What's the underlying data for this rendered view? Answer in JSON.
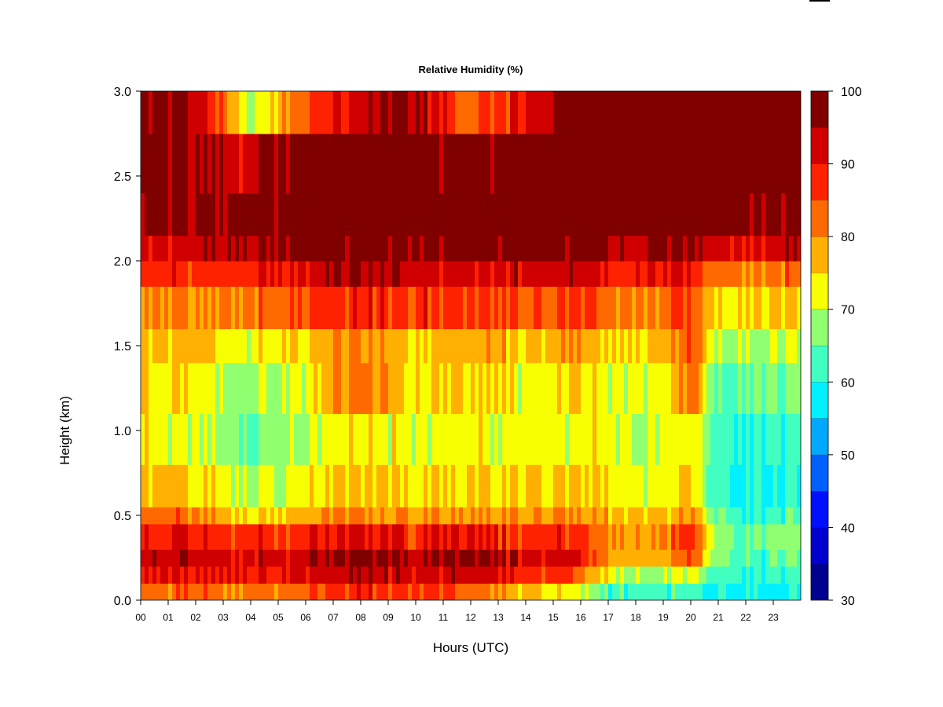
{
  "chart_data": {
    "type": "heatmap",
    "title": "Relative Humidity (%)",
    "xlabel": "Hours (UTC)",
    "ylabel": "Height (km)",
    "xlim": [
      0,
      24
    ],
    "ylim": [
      0,
      3
    ],
    "x_ticks": [
      "00",
      "01",
      "02",
      "03",
      "04",
      "05",
      "06",
      "07",
      "08",
      "09",
      "10",
      "11",
      "12",
      "13",
      "14",
      "15",
      "16",
      "17",
      "18",
      "19",
      "20",
      "21",
      "22",
      "23"
    ],
    "y_ticks": [
      "0.0",
      "0.5",
      "1.0",
      "1.5",
      "2.0",
      "2.5",
      "3.0"
    ],
    "colorbar": {
      "min": 30,
      "max": 100,
      "tick_labels": [
        "30",
        "40",
        "50",
        "60",
        "70",
        "80",
        "90",
        "100"
      ],
      "levels": [
        30,
        35,
        40,
        45,
        50,
        55,
        60,
        65,
        70,
        75,
        80,
        85,
        90,
        95,
        100
      ],
      "colors": [
        "#00008f",
        "#0000cf",
        "#0010ff",
        "#0060ff",
        "#00a8ff",
        "#00f0ff",
        "#40ffc0",
        "#90ff70",
        "#f8ff00",
        "#ffb000",
        "#ff6a00",
        "#ff2200",
        "#d00000",
        "#800000"
      ]
    },
    "z_units": "%",
    "height_bands_km": [
      0.0,
      0.1,
      0.2,
      0.3,
      0.45,
      0.55,
      0.8,
      1.1,
      1.4,
      1.6,
      1.85,
      2.0,
      2.15,
      2.4,
      2.75,
      3.0
    ],
    "values_by_hour": [
      {
        "hour": 0,
        "rh": [
          82,
          90,
          94,
          90,
          84,
          77,
          73,
          76,
          77,
          80,
          88,
          92,
          96,
          98,
          98
        ]
      },
      {
        "hour": 2,
        "rh": [
          84,
          91,
          94,
          90,
          82,
          76,
          73,
          74,
          78,
          82,
          88,
          92,
          96,
          97,
          95
        ]
      },
      {
        "hour": 4,
        "rh": [
          82,
          90,
          92,
          88,
          75,
          70,
          66,
          68,
          73,
          82,
          90,
          96,
          98,
          93,
          70
        ]
      },
      {
        "hour": 6,
        "rh": [
          84,
          91,
          94,
          88,
          78,
          73,
          70,
          72,
          76,
          85,
          92,
          97,
          99,
          98,
          86
        ]
      },
      {
        "hour": 8,
        "rh": [
          88,
          94,
          97,
          90,
          80,
          76,
          74,
          82,
          80,
          88,
          94,
          98,
          99,
          99,
          93
        ]
      },
      {
        "hour": 10,
        "rh": [
          86,
          92,
          94,
          88,
          78,
          74,
          72,
          73,
          76,
          86,
          93,
          98,
          99,
          99,
          96
        ]
      },
      {
        "hour": 12,
        "rh": [
          85,
          93,
          97,
          90,
          80,
          75,
          73,
          76,
          78,
          86,
          92,
          97,
          99,
          98,
          82
        ]
      },
      {
        "hour": 14,
        "rh": [
          76,
          88,
          92,
          86,
          78,
          74,
          71,
          72,
          76,
          84,
          92,
          97,
          99,
          99,
          90
        ]
      },
      {
        "hour": 15.5,
        "rh": [
          72,
          86,
          92,
          88,
          80,
          76,
          72,
          74,
          78,
          86,
          92,
          97,
          99,
          99,
          98
        ]
      },
      {
        "hour": 17,
        "rh": [
          64,
          72,
          80,
          80,
          78,
          74,
          72,
          73,
          76,
          82,
          90,
          96,
          99,
          99,
          98
        ]
      },
      {
        "hour": 19,
        "rh": [
          62,
          68,
          78,
          80,
          76,
          72,
          70,
          72,
          76,
          82,
          90,
          97,
          99,
          99,
          98
        ]
      },
      {
        "hour": 20,
        "rh": [
          62,
          72,
          84,
          86,
          80,
          76,
          74,
          84,
          84,
          86,
          90,
          96,
          99,
          99,
          99
        ]
      },
      {
        "hour": 21,
        "rh": [
          60,
          64,
          68,
          68,
          66,
          62,
          63,
          66,
          70,
          74,
          82,
          92,
          98,
          99,
          99
        ]
      },
      {
        "hour": 22.5,
        "rh": [
          58,
          60,
          62,
          64,
          60,
          58,
          60,
          64,
          68,
          74,
          82,
          92,
          98,
          99,
          99
        ]
      },
      {
        "hour": 24,
        "rh": [
          58,
          62,
          66,
          68,
          64,
          60,
          62,
          66,
          70,
          76,
          84,
          94,
          98,
          99,
          99
        ]
      }
    ]
  }
}
